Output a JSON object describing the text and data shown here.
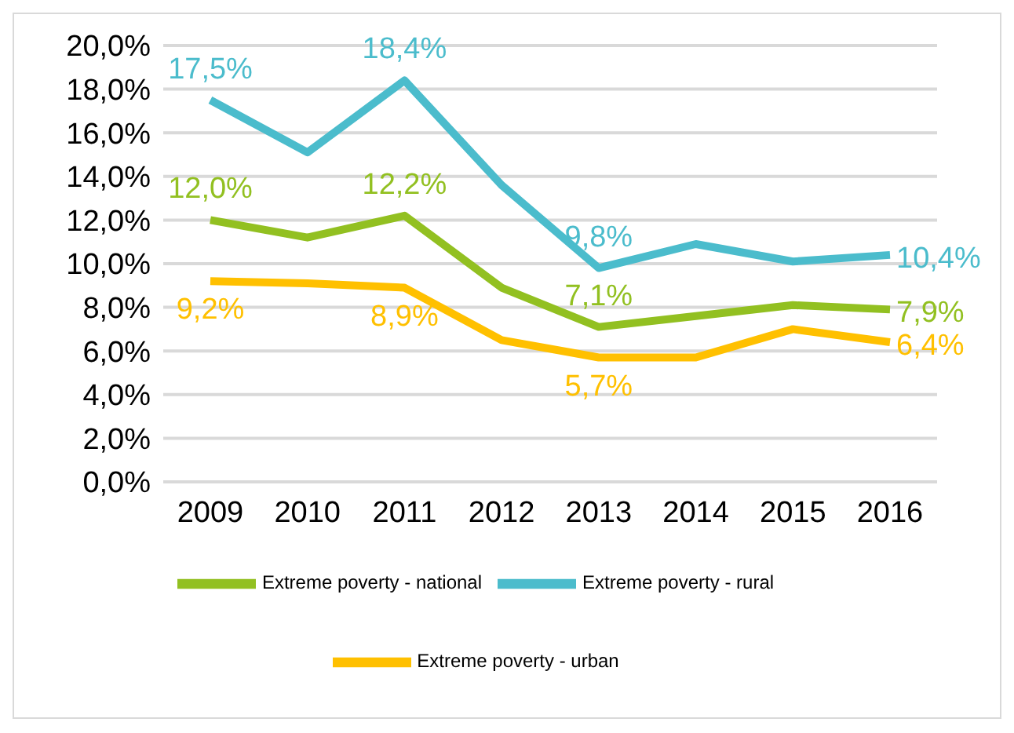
{
  "chart_data": {
    "type": "line",
    "categories": [
      "2009",
      "2010",
      "2011",
      "2012",
      "2013",
      "2014",
      "2015",
      "2016"
    ],
    "ylim": [
      0,
      20
    ],
    "yticks": [
      {
        "value": 0,
        "label": "0,0%"
      },
      {
        "value": 2,
        "label": "2,0%"
      },
      {
        "value": 4,
        "label": "4,0%"
      },
      {
        "value": 6,
        "label": "6,0%"
      },
      {
        "value": 8,
        "label": "8,0%"
      },
      {
        "value": 10,
        "label": "10,0%"
      },
      {
        "value": 12,
        "label": "12,0%"
      },
      {
        "value": 14,
        "label": "14,0%"
      },
      {
        "value": 16,
        "label": "16,0%"
      },
      {
        "value": 18,
        "label": "18,0%"
      },
      {
        "value": 20,
        "label": "20,0%"
      }
    ],
    "grid": "y",
    "legend": "bottom",
    "marker": "none",
    "line_style": "solid",
    "series": [
      {
        "name": "Extreme poverty - national",
        "color": "#92c021",
        "values": [
          12.0,
          11.2,
          12.2,
          8.9,
          7.1,
          7.6,
          8.1,
          7.9
        ],
        "value_labels": [
          "12,0%",
          null,
          "12,2%",
          null,
          "7,1%",
          null,
          null,
          "7,9%"
        ]
      },
      {
        "name": "Extreme poverty - urban",
        "color": "#ffc000",
        "values": [
          9.2,
          9.1,
          8.9,
          6.5,
          5.7,
          5.7,
          7.0,
          6.4
        ],
        "value_labels": [
          "9,2%",
          null,
          "8,9%",
          null,
          "5,7%",
          null,
          null,
          "6,4%"
        ]
      },
      {
        "name": "Extreme poverty - rural",
        "color": "#4bbccc",
        "values": [
          17.5,
          15.1,
          18.4,
          13.6,
          9.8,
          10.9,
          10.1,
          10.4
        ],
        "value_labels": [
          "17,5%",
          null,
          "18,4%",
          null,
          "9,8%",
          null,
          null,
          "10,4%"
        ]
      }
    ]
  }
}
